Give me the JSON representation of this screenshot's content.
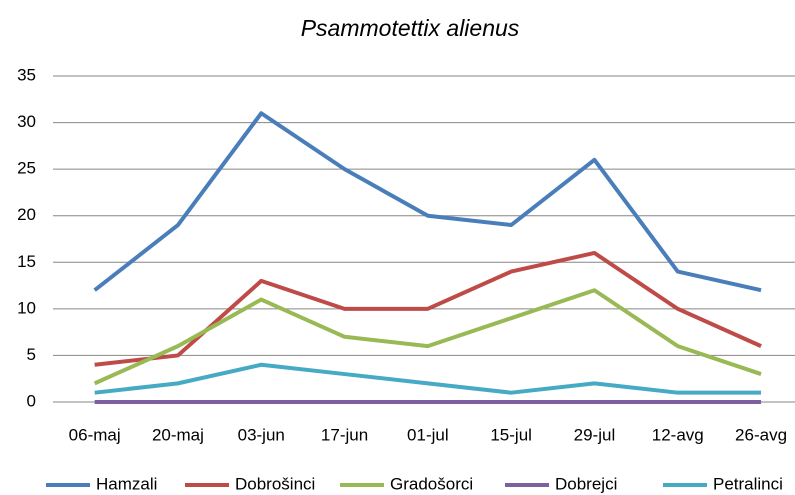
{
  "chart_data": {
    "type": "line",
    "title": "Psammotettix alienus",
    "categories": [
      "06-maj",
      "20-maj",
      "03-jun",
      "17-jun",
      "01-jul",
      "15-jul",
      "29-jul",
      "12-avg",
      "26-avg"
    ],
    "series": [
      {
        "name": "Hamzali",
        "color": "#4a7ebb",
        "values": [
          12,
          19,
          31,
          25,
          20,
          19,
          26,
          14,
          12
        ]
      },
      {
        "name": "Dobrošinci",
        "color": "#be4b48",
        "values": [
          4,
          5,
          13,
          10,
          10,
          14,
          16,
          10,
          6
        ]
      },
      {
        "name": "Gradošorci",
        "color": "#98b954",
        "values": [
          2,
          6,
          11,
          7,
          6,
          9,
          12,
          6,
          3
        ]
      },
      {
        "name": "Dobrejci",
        "color": "#7d60a0",
        "values": [
          0,
          0,
          0,
          0,
          0,
          0,
          0,
          0,
          0
        ]
      },
      {
        "name": "Petralinci",
        "color": "#46aac5",
        "values": [
          1,
          2,
          4,
          3,
          2,
          1,
          2,
          1,
          1
        ]
      }
    ],
    "ylim": [
      0,
      35
    ],
    "yticks": [
      0,
      5,
      10,
      15,
      20,
      25,
      30,
      35
    ],
    "grid": true,
    "legend": "bottom"
  }
}
